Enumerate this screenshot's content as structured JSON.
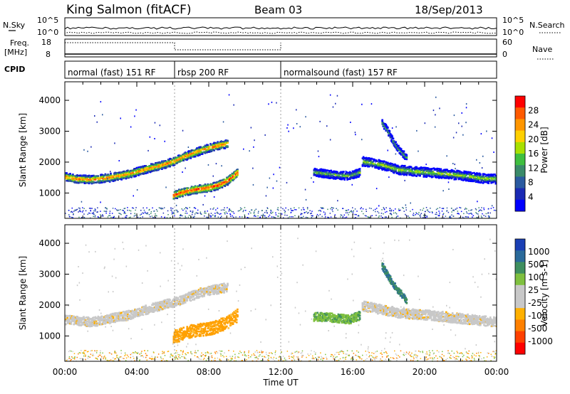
{
  "header": {
    "title": "King Salmon (fitACF)",
    "beam": "Beam 03",
    "date": "18/Sep/2013"
  },
  "top_panels": {
    "nsky_label": "N.Sky",
    "nsky_ticks": [
      "10^5",
      "10^0"
    ],
    "nsearch_label": "N.Search",
    "nsearch_ticks": [
      "10^5",
      "10^0"
    ],
    "freq_label": "Freq.",
    "freq_unit": "[MHz]",
    "freq_ticks": [
      "18",
      "8"
    ],
    "nave_label": "Nave",
    "nave_ticks": [
      "60",
      "0"
    ],
    "cpid_label": "CPID",
    "modes": [
      {
        "label": "normal (fast) 151 RF",
        "start_hour": 0,
        "end_hour": 6.1
      },
      {
        "label": "rbsp 200 RF",
        "start_hour": 6.1,
        "end_hour": 12.0
      },
      {
        "label": "normalsound (fast) 157 RF",
        "start_hour": 12.0,
        "end_hour": 24
      }
    ]
  },
  "chart_data": [
    {
      "type": "heatmap",
      "panel": "power",
      "xlabel": "Time UT",
      "ylabel": "Slant Range [km]",
      "x_ticks": [
        "00:00",
        "04:00",
        "08:00",
        "12:00",
        "16:00",
        "20:00",
        "00:00"
      ],
      "xlim_hours": [
        0,
        24
      ],
      "ylim_km": [
        180,
        4600
      ],
      "y_ticks": [
        1000,
        2000,
        3000,
        4000
      ],
      "colorbar": {
        "label": "Power [dB]",
        "ticks": [
          "28",
          "24",
          "20",
          "16",
          "12",
          "8",
          "4"
        ],
        "colors": [
          "#ff0000",
          "#ff5a00",
          "#ff9600",
          "#ffd000",
          "#a8e000",
          "#3fbf3f",
          "#3a8a6a",
          "#2a5aa0",
          "#1a2ab4",
          "#0000ff"
        ]
      },
      "echo_bands": [
        {
          "hours": [
            0,
            0.6,
            1.5,
            2.5,
            3.5,
            4.5,
            5.5,
            6.0,
            6.8,
            7.6,
            8.4,
            9.0
          ],
          "center_km": [
            1550,
            1480,
            1460,
            1530,
            1640,
            1800,
            1950,
            2050,
            2250,
            2420,
            2550,
            2620
          ],
          "width_km": 260,
          "peak_db": 24
        },
        {
          "hours": [
            6.0,
            6.5,
            7.0,
            7.5,
            8.0,
            8.5,
            9.0,
            9.6
          ],
          "center_km": [
            950,
            1050,
            1120,
            1160,
            1200,
            1280,
            1420,
            1700
          ],
          "width_km": 260,
          "peak_db": 28
        },
        {
          "hours": [
            13.8,
            14.5,
            15.2,
            15.8,
            16.4
          ],
          "center_km": [
            1700,
            1650,
            1600,
            1580,
            1700
          ],
          "width_km": 260,
          "peak_db": 12
        },
        {
          "hours": [
            16.5,
            17.5,
            18.5,
            19.5,
            20.5,
            21.5,
            22.5,
            23.2,
            24.0
          ],
          "center_km": [
            2050,
            1950,
            1780,
            1720,
            1680,
            1620,
            1560,
            1500,
            1480
          ],
          "width_km": 300,
          "peak_db": 14
        },
        {
          "hours": [
            17.6,
            17.9,
            18.2,
            18.5,
            19.0
          ],
          "center_km": [
            3300,
            3050,
            2700,
            2450,
            2150
          ],
          "width_km": 220,
          "peak_db": 10
        }
      ]
    },
    {
      "type": "heatmap",
      "panel": "velocity",
      "xlabel": "Time UT",
      "ylabel": "Slant Range [km]",
      "x_ticks": [
        "00:00",
        "04:00",
        "08:00",
        "12:00",
        "16:00",
        "20:00",
        "00:00"
      ],
      "xlim_hours": [
        0,
        24
      ],
      "ylim_km": [
        180,
        4600
      ],
      "y_ticks": [
        1000,
        2000,
        3000,
        4000
      ],
      "colorbar": {
        "label": "Velocity [m s-1]",
        "ticks": [
          "1000",
          "500",
          "100",
          "25",
          "-25",
          "-100",
          "-500",
          "-1000"
        ],
        "colors": [
          "#1a3fb4",
          "#2a6a9a",
          "#3f8f5f",
          "#7fc03f",
          "#c8c8c8",
          "#c8c8c8",
          "#ffb000",
          "#ff8000",
          "#ff4000",
          "#ff0000"
        ]
      },
      "echo_bands": [
        {
          "hours": [
            0,
            1.5,
            3.5,
            5.5,
            6.0,
            7.6,
            9.0
          ],
          "center_km": [
            1550,
            1480,
            1700,
            2050,
            2100,
            2450,
            2600
          ],
          "width_km": 300,
          "velocity_ms": 0
        },
        {
          "hours": [
            6.0,
            7.0,
            8.0,
            9.0,
            9.6
          ],
          "center_km": [
            1000,
            1180,
            1260,
            1450,
            1700
          ],
          "width_km": 420,
          "velocity_ms": -150
        },
        {
          "hours": [
            13.8,
            14.8,
            15.8,
            16.4
          ],
          "center_km": [
            1650,
            1620,
            1560,
            1700
          ],
          "width_km": 280,
          "velocity_ms": 60
        },
        {
          "hours": [
            16.5,
            18.5,
            20.5,
            22.5,
            24.0
          ],
          "center_km": [
            2000,
            1780,
            1680,
            1560,
            1480
          ],
          "width_km": 320,
          "velocity_ms": 0
        },
        {
          "hours": [
            17.6,
            18.2,
            19.0
          ],
          "center_km": [
            3300,
            2700,
            2150
          ],
          "width_km": 220,
          "velocity_ms": 150
        }
      ]
    }
  ]
}
